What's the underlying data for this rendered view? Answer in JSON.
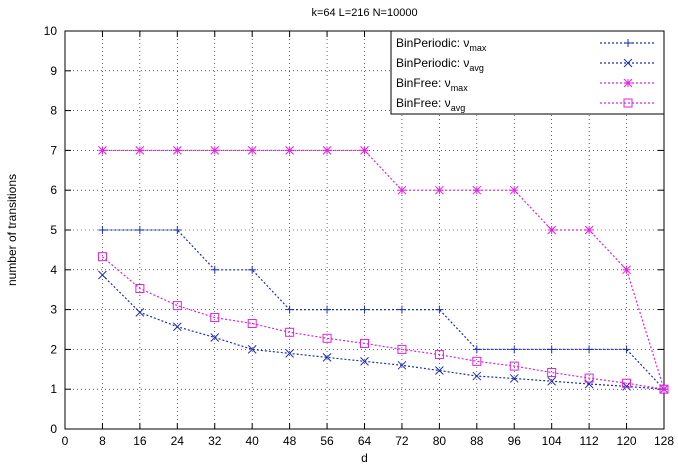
{
  "chart_data": {
    "type": "line",
    "title": "k=64 L=216 N=10000",
    "xlabel": "d",
    "ylabel": "number of transitions",
    "xlim": [
      0,
      128
    ],
    "ylim": [
      0,
      10
    ],
    "xticks": [
      0,
      8,
      16,
      24,
      32,
      40,
      48,
      56,
      64,
      72,
      80,
      88,
      96,
      104,
      112,
      120,
      128
    ],
    "yticks": [
      0,
      1,
      2,
      3,
      4,
      5,
      6,
      7,
      8,
      9,
      10
    ],
    "grid": true,
    "legend_position": "top-right",
    "x": [
      8,
      16,
      24,
      32,
      40,
      48,
      56,
      64,
      72,
      80,
      88,
      96,
      104,
      112,
      120,
      128
    ],
    "series": [
      {
        "name_main": "BinPeriodic: ν",
        "name_sub": "max",
        "color": "#1f2fb5",
        "marker": "plus",
        "values": [
          5,
          5,
          5,
          4,
          4,
          3,
          3,
          3,
          3,
          3,
          2,
          2,
          2,
          2,
          2,
          1
        ]
      },
      {
        "name_main": "BinPeriodic: ν",
        "name_sub": "avg",
        "color": "#1f2fb5",
        "marker": "cross",
        "values": [
          3.87,
          2.93,
          2.57,
          2.3,
          2.0,
          1.9,
          1.8,
          1.7,
          1.6,
          1.47,
          1.33,
          1.27,
          1.2,
          1.13,
          1.07,
          1.0
        ]
      },
      {
        "name_main": "BinFree: ν",
        "name_sub": "max",
        "color": "#e020e0",
        "marker": "star",
        "values": [
          7,
          7,
          7,
          7,
          7,
          7,
          7,
          7,
          6,
          6,
          6,
          6,
          5,
          5,
          4,
          1
        ]
      },
      {
        "name_main": "BinFree: ν",
        "name_sub": "avg",
        "color": "#e020e0",
        "marker": "square",
        "values": [
          4.33,
          3.53,
          3.1,
          2.8,
          2.65,
          2.43,
          2.28,
          2.15,
          2.0,
          1.87,
          1.7,
          1.58,
          1.42,
          1.28,
          1.15,
          1.0
        ]
      }
    ]
  }
}
